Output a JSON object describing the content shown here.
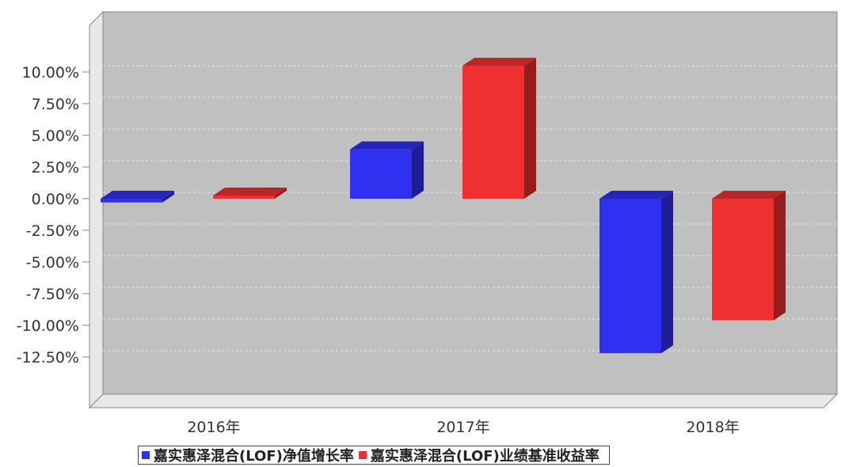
{
  "chart_data": {
    "type": "bar",
    "categories": [
      "2016年",
      "2017年",
      "2018年"
    ],
    "series": [
      {
        "name": "嘉实惠泽混合(LOF)净值增长率",
        "values": [
          -0.3,
          3.9,
          -12.2
        ],
        "color": "#3030f0"
      },
      {
        "name": "嘉实惠泽混合(LOF)业绩基准收益率",
        "values": [
          0.25,
          10.5,
          -9.6
        ],
        "color": "#ee3030"
      }
    ],
    "y_ticks": [
      "10.00%",
      "7.50%",
      "5.00%",
      "2.50%",
      "0.00%",
      "-2.50%",
      "-5.00%",
      "-7.50%",
      "-10.00%",
      "-12.50%"
    ],
    "ylim": [
      -12.5,
      10.0
    ],
    "grid": true,
    "legend": "bottom"
  }
}
